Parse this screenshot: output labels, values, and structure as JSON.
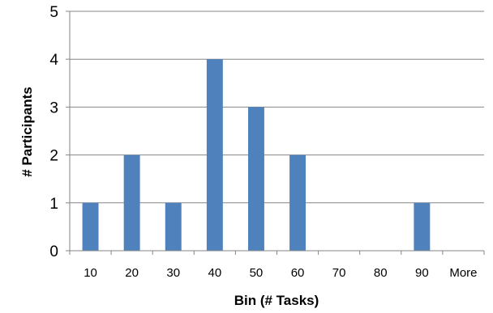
{
  "chart_data": {
    "type": "bar",
    "title": "",
    "xlabel": "Bin (# Tasks)",
    "ylabel": "# Participants",
    "categories": [
      "10",
      "20",
      "30",
      "40",
      "50",
      "60",
      "70",
      "80",
      "90",
      "More"
    ],
    "values": [
      1,
      2,
      1,
      4,
      3,
      2,
      0,
      0,
      1,
      0
    ],
    "ylim": [
      0,
      5
    ],
    "yticks": [
      "0",
      "1",
      "2",
      "3",
      "4",
      "5"
    ],
    "grid": true,
    "legend": "none",
    "bar_color": "#4f81bd",
    "grid_color": "#868686"
  }
}
